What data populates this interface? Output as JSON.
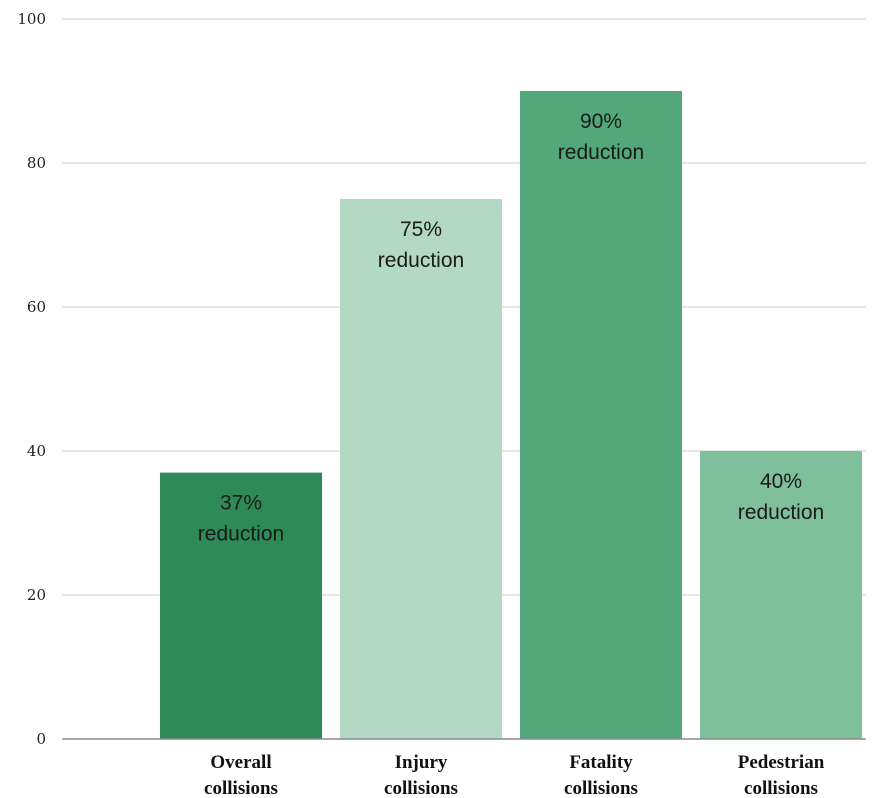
{
  "chart_data": {
    "type": "bar",
    "categories": [
      "Overall collisions",
      "Injury collisions",
      "Fatality collisions",
      "Pedestrian collisions"
    ],
    "category_lines": [
      [
        "Overall",
        "collisions"
      ],
      [
        "Injury",
        "collisions"
      ],
      [
        "Fatality",
        "collisions"
      ],
      [
        "Pedestrian",
        "collisions"
      ]
    ],
    "values": [
      37,
      75,
      90,
      40
    ],
    "bar_labels": [
      [
        "37%",
        "reduction"
      ],
      [
        "75%",
        "reduction"
      ],
      [
        "90%",
        "reduction"
      ],
      [
        "40%",
        "reduction"
      ]
    ],
    "bar_colors": [
      "#2e8b57",
      "#b3d9c5",
      "#52a87a",
      "#7fbf9c"
    ],
    "ylim": [
      0,
      100
    ],
    "yticks": [
      0,
      20,
      40,
      60,
      80,
      100
    ],
    "grid": true,
    "legend": "none",
    "title": "",
    "xlabel": "",
    "ylabel": ""
  }
}
